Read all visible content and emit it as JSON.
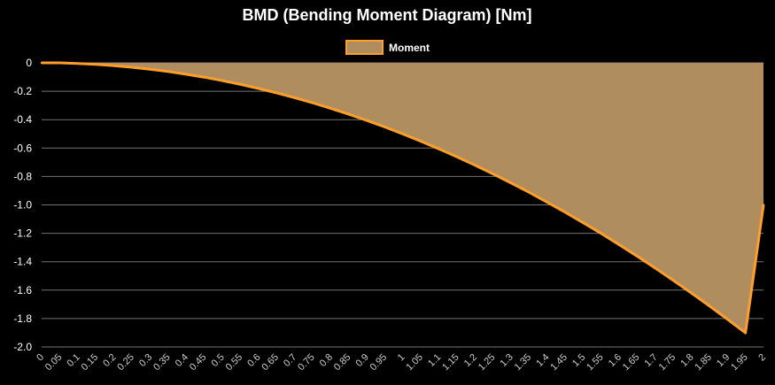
{
  "chart_data": {
    "type": "area",
    "title": "BMD (Bending Moment Diagram) [Nm]",
    "legend": {
      "position": "top-center",
      "entries": [
        "Moment"
      ]
    },
    "xlabel": "",
    "ylabel": "",
    "grid": true,
    "ylim": [
      -2.0,
      0
    ],
    "y_ticks": [
      "0",
      "-0.2",
      "-0.4",
      "-0.6",
      "-0.8",
      "-1.0",
      "-1.2",
      "-1.4",
      "-1.6",
      "-1.8",
      "-2.0"
    ],
    "x": [
      "0",
      "0.05",
      "0.1",
      "0.15",
      "0.2",
      "0.25",
      "0.3",
      "0.35",
      "0.4",
      "0.45",
      "0.5",
      "0.55",
      "0.6",
      "0.65",
      "0.7",
      "0.75",
      "0.8",
      "0.85",
      "0.9",
      "0.95",
      "1",
      "1.05",
      "1.1",
      "1.15",
      "1.2",
      "1.25",
      "1.3",
      "1.35",
      "1.4",
      "1.45",
      "1.5",
      "1.55",
      "1.6",
      "1.65",
      "1.7",
      "1.75",
      "1.8",
      "1.85",
      "1.9",
      "1.95",
      "2"
    ],
    "series": [
      {
        "name": "Moment",
        "color": "#ff9f2a",
        "fill": "#b08d5f",
        "values": [
          0,
          0,
          -0.005,
          -0.011,
          -0.02,
          -0.031,
          -0.045,
          -0.061,
          -0.08,
          -0.101,
          -0.125,
          -0.151,
          -0.18,
          -0.211,
          -0.245,
          -0.281,
          -0.32,
          -0.361,
          -0.405,
          -0.451,
          -0.5,
          -0.551,
          -0.605,
          -0.661,
          -0.72,
          -0.781,
          -0.845,
          -0.911,
          -0.98,
          -1.051,
          -1.125,
          -1.201,
          -1.28,
          -1.361,
          -1.445,
          -1.531,
          -1.62,
          -1.711,
          -1.805,
          -1.901,
          -1.0
        ]
      }
    ]
  }
}
